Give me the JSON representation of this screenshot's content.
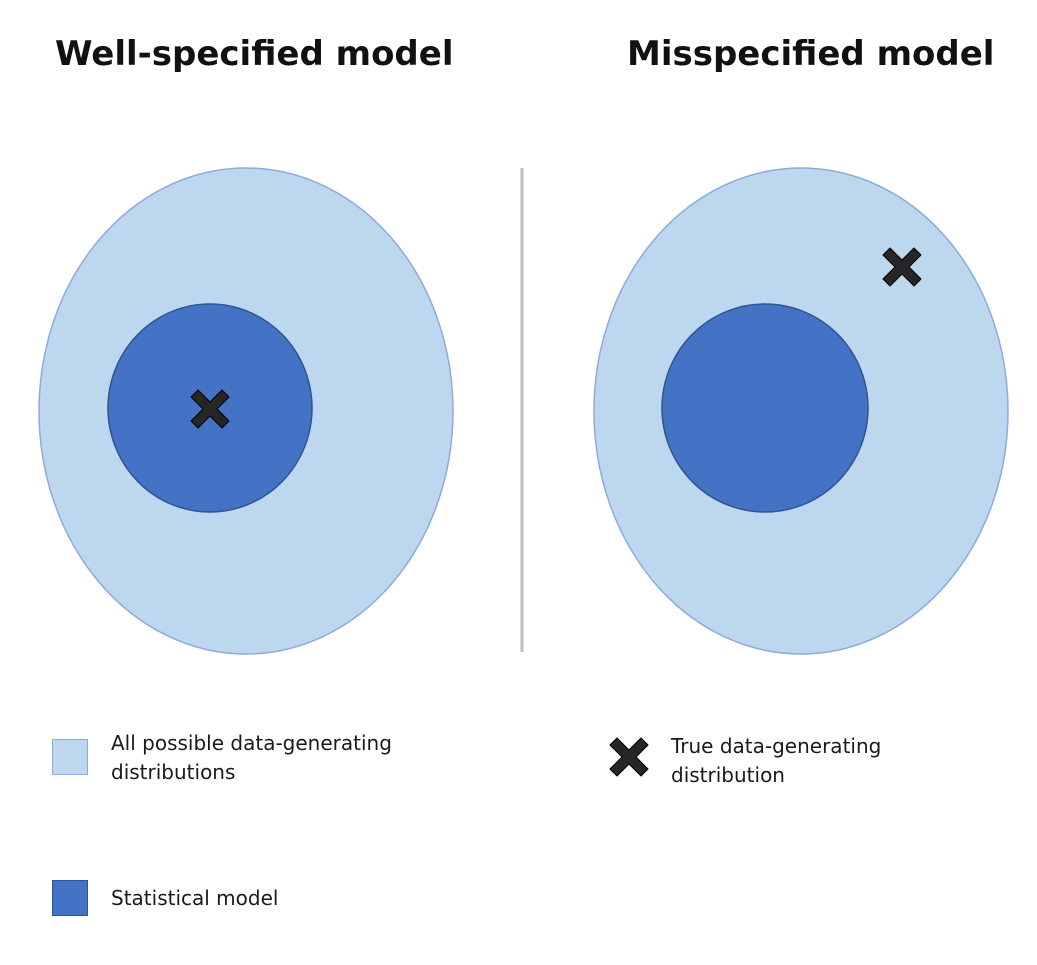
{
  "panels": [
    {
      "title": "Well-specified model",
      "true_distribution_inside_model": true
    },
    {
      "title": "Misspecified model",
      "true_distribution_inside_model": false
    }
  ],
  "legend": {
    "all_distributions": "All possible data-generating distributions",
    "statistical_model": "Statistical model",
    "true_distribution": "True data-generating distribution"
  },
  "colors": {
    "all_distributions_fill": "#bdd7ee",
    "all_distributions_stroke": "#8faadc",
    "statistical_model_fill": "#4472c4",
    "statistical_model_stroke": "#2f5597",
    "marker": "#262626",
    "divider": "#bfbfbf"
  },
  "icons": {
    "true_distribution": "x-cross-icon"
  }
}
